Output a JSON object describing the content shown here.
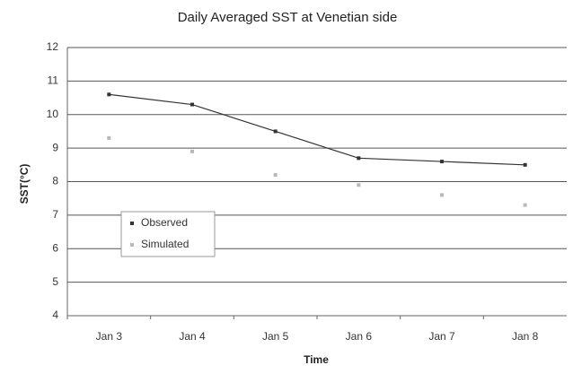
{
  "chart_data": {
    "type": "line",
    "title": "Daily Averaged SST at Venetian side",
    "x_label": "Time",
    "y_label": "SST(°C)",
    "categories": [
      "Jan 3",
      "Jan 4",
      "Jan 5",
      "Jan 6",
      "Jan 7",
      "Jan 8"
    ],
    "series": [
      {
        "name": "Observed",
        "color": "#333333",
        "style": "line",
        "values": [
          10.6,
          10.3,
          9.5,
          8.7,
          8.6,
          8.5
        ]
      },
      {
        "name": "Simulated",
        "color": "#b8b8b8",
        "style": "markers",
        "values": [
          9.3,
          8.9,
          8.2,
          7.9,
          7.6,
          7.3
        ]
      }
    ],
    "ylim": [
      4,
      12
    ],
    "yticks": [
      4,
      5,
      6,
      7,
      8,
      9,
      10,
      11,
      12
    ],
    "grid": true,
    "legend": "left"
  }
}
